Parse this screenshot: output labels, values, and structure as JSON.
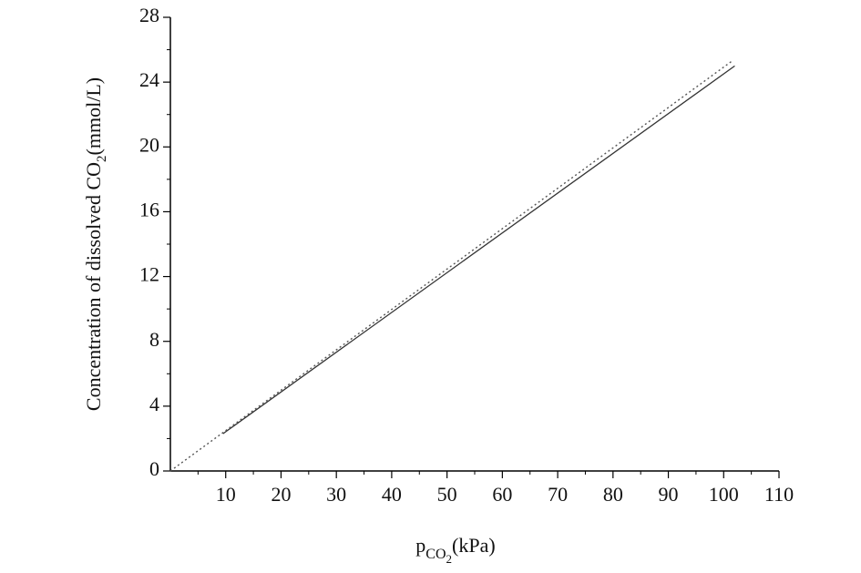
{
  "chart_data": {
    "type": "line",
    "xlabel": [
      "p",
      "CO",
      "2",
      "(kPa)"
    ],
    "ylabel": [
      "Concentration of dissolved CO",
      "2",
      "(mmol/L)"
    ],
    "xlim": [
      0,
      110
    ],
    "xticks": [
      10,
      20,
      30,
      40,
      50,
      60,
      70,
      80,
      90,
      100,
      110
    ],
    "ylim": [
      0,
      28
    ],
    "yticks": [
      0,
      4,
      8,
      12,
      16,
      20,
      24,
      28
    ],
    "series": [
      {
        "color": "#333333",
        "style": "solid",
        "x": [
          9.5,
          102
        ],
        "values": [
          2.3,
          25.0
        ]
      },
      {
        "color": "#555555",
        "style": "dotted",
        "x": [
          0,
          101.5
        ],
        "values": [
          0,
          25.3
        ]
      }
    ]
  }
}
